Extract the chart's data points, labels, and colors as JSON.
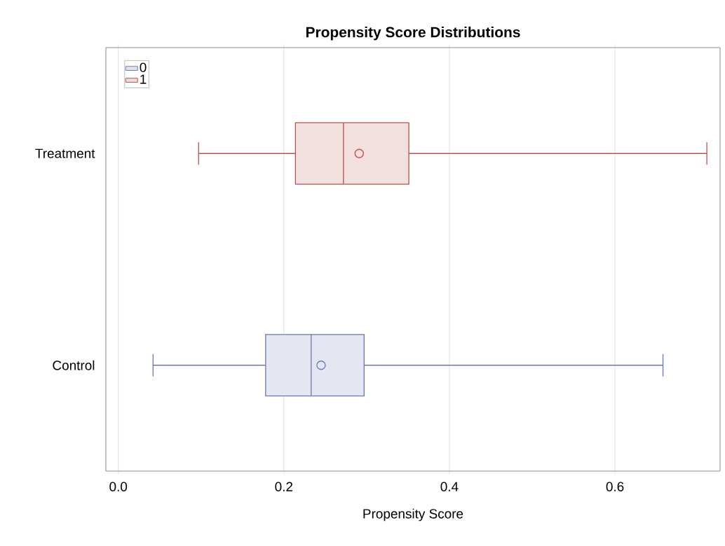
{
  "chart_data": {
    "type": "box",
    "orientation": "horizontal",
    "title": "Propensity Score Distributions",
    "xlabel": "Propensity Score",
    "categories": [
      "Treatment",
      "Control"
    ],
    "xlim": [
      -0.015,
      0.727
    ],
    "xticks": [
      {
        "value": 0,
        "label": "0.0"
      },
      0.2,
      0.4,
      0.6
    ],
    "grid": "x",
    "legend": "top left",
    "series": [
      {
        "name": "0",
        "color": "#6a78b4",
        "boxes": [
          null,
          {
            "low": 0.042,
            "q1": 0.178,
            "median": 0.233,
            "q3": 0.297,
            "high": 0.658,
            "mean": 0.245
          }
        ]
      },
      {
        "name": "1",
        "color": "#b9524e",
        "boxes": [
          {
            "low": 0.097,
            "q1": 0.214,
            "median": 0.272,
            "q3": 0.351,
            "high": 0.711,
            "mean": 0.291
          },
          null
        ]
      }
    ]
  }
}
